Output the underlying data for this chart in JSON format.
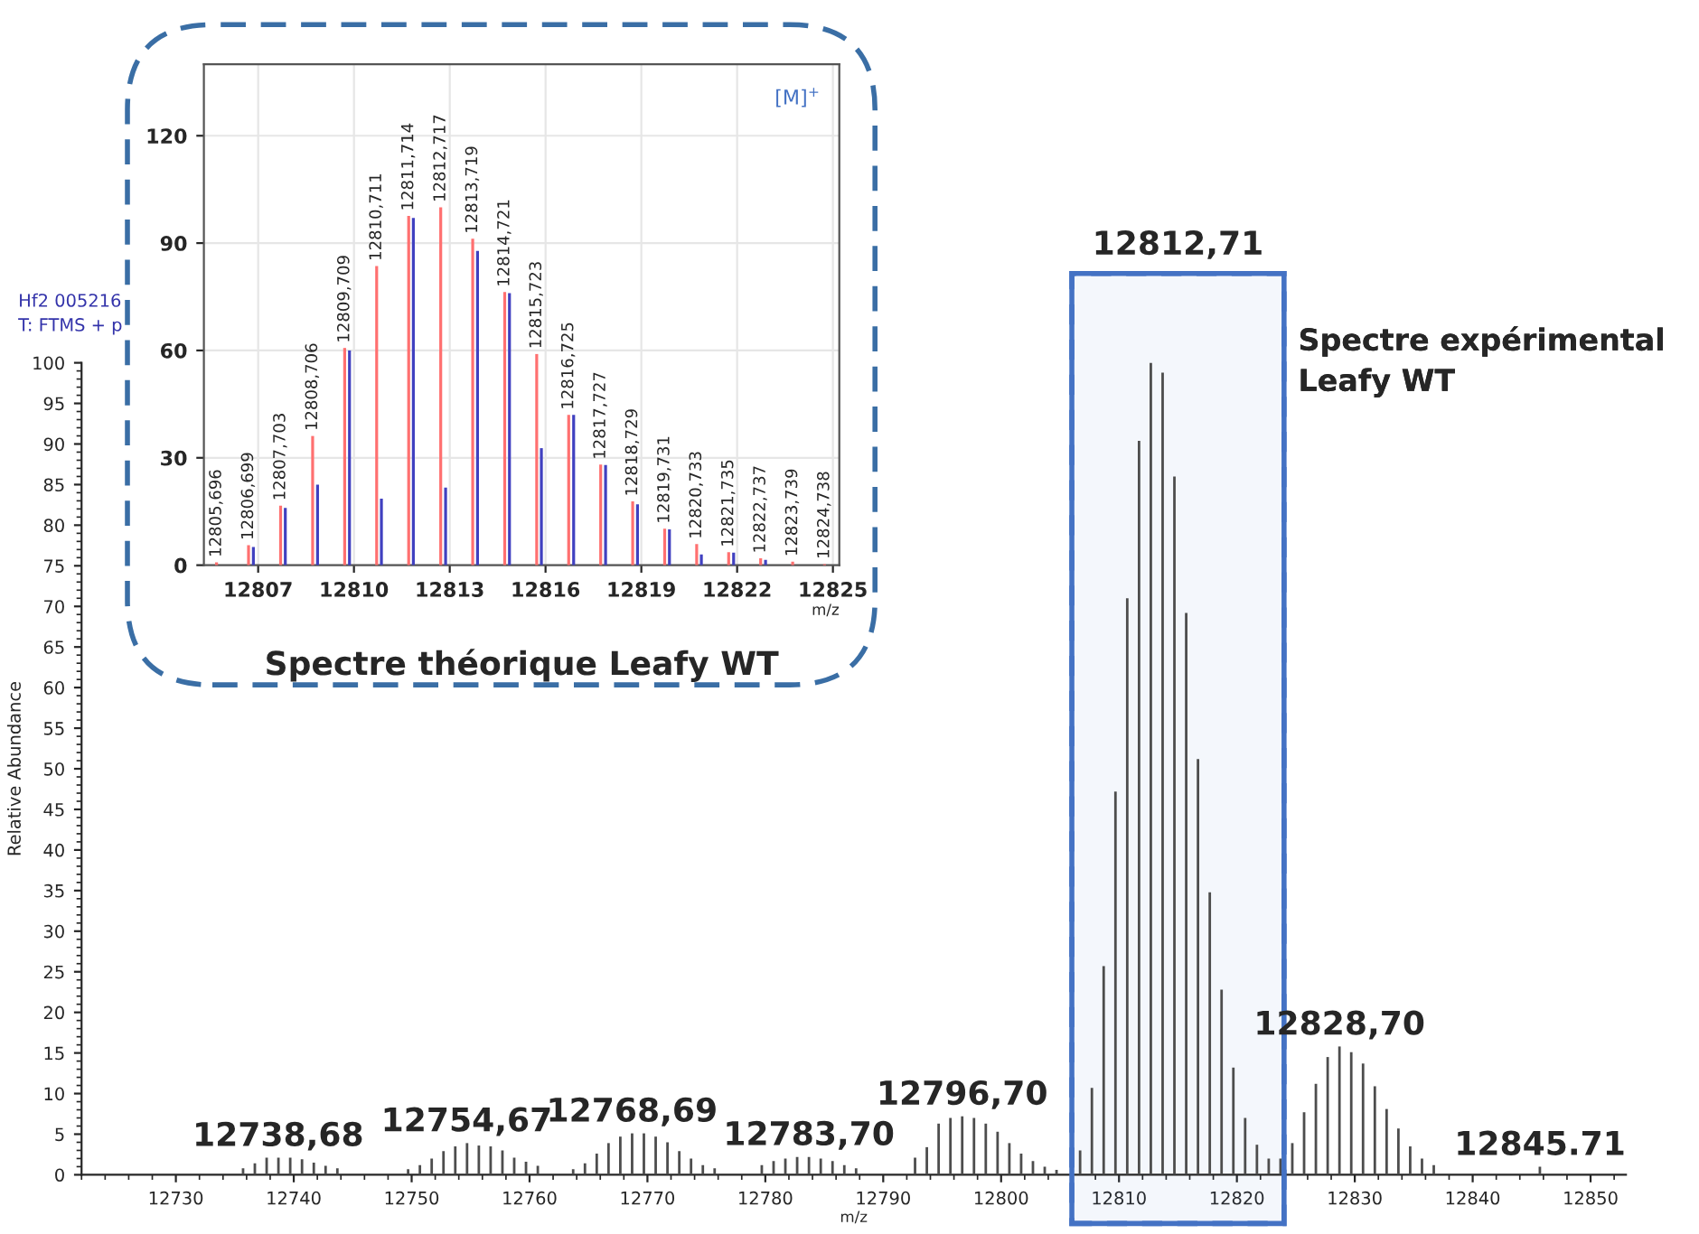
{
  "chart_data": [
    {
      "type": "bar",
      "xlabel": "m/z",
      "ylabel": "Relative Abundance",
      "color": "#4d4d4d",
      "x": [
        12735.7,
        12736.7,
        12737.7,
        12738.7,
        12739.7,
        12740.7,
        12741.7,
        12742.7,
        12743.7,
        12749.7,
        12750.7,
        12751.7,
        12752.7,
        12753.7,
        12754.7,
        12755.7,
        12756.7,
        12757.7,
        12758.7,
        12759.7,
        12760.7,
        12763.7,
        12764.7,
        12765.7,
        12766.7,
        12767.7,
        12768.7,
        12769.7,
        12770.7,
        12771.7,
        12772.7,
        12773.7,
        12774.7,
        12775.7,
        12779.7,
        12780.7,
        12781.7,
        12782.7,
        12783.7,
        12784.7,
        12785.7,
        12786.7,
        12787.7,
        12792.7,
        12793.7,
        12794.7,
        12795.7,
        12796.7,
        12797.7,
        12798.7,
        12799.7,
        12800.7,
        12801.7,
        12802.7,
        12803.7,
        12804.7,
        12806.7,
        12807.7,
        12808.7,
        12809.7,
        12810.7,
        12811.7,
        12812.7,
        12813.7,
        12814.7,
        12815.7,
        12816.7,
        12817.7,
        12818.7,
        12819.7,
        12820.7,
        12821.7,
        12822.7,
        12823.7,
        12824.7,
        12825.7,
        12826.7,
        12827.7,
        12828.7,
        12829.7,
        12830.7,
        12831.7,
        12832.7,
        12833.7,
        12834.7,
        12835.7,
        12836.7,
        12845.7
      ],
      "values": [
        0.8,
        1.4,
        2.1,
        2.1,
        2.1,
        1.9,
        1.5,
        1.1,
        0.8,
        0.7,
        1.2,
        2.0,
        2.9,
        3.5,
        3.9,
        3.6,
        3.5,
        3.0,
        2.1,
        1.6,
        1.1,
        0.7,
        1.4,
        2.6,
        3.9,
        4.7,
        5.1,
        5.1,
        4.7,
        4.0,
        2.9,
        2.0,
        1.2,
        0.8,
        1.2,
        1.7,
        2.0,
        2.2,
        2.2,
        2.0,
        1.7,
        1.2,
        0.8,
        2.1,
        3.4,
        6.3,
        7.0,
        7.2,
        7.0,
        6.3,
        5.3,
        3.9,
        2.6,
        1.7,
        1.0,
        0.6,
        3.0,
        10.7,
        25.7,
        47.2,
        71.0,
        90.4,
        100,
        98.8,
        86.0,
        69.2,
        51.2,
        34.8,
        22.8,
        13.2,
        7.0,
        3.7,
        2.0,
        2.0,
        3.9,
        7.7,
        11.2,
        14.5,
        15.8,
        15.1,
        13.7,
        10.9,
        8.1,
        5.7,
        3.5,
        2.0,
        1.2,
        1.0
      ],
      "xlim": [
        12722,
        12853
      ],
      "ylim": [
        0,
        100
      ],
      "xticks": [
        12730,
        12740,
        12750,
        12760,
        12770,
        12780,
        12790,
        12800,
        12810,
        12820,
        12830,
        12840,
        12850
      ],
      "yticks": [
        0,
        5,
        10,
        15,
        20,
        25,
        30,
        35,
        40,
        45,
        50,
        55,
        60,
        65,
        70,
        75,
        80,
        85,
        90,
        95,
        100
      ],
      "annotations": [
        {
          "text": "12738,68",
          "x": 12738.68,
          "y": 2.1
        },
        {
          "text": "12754,67",
          "x": 12754.67,
          "y": 3.9
        },
        {
          "text": "12768,69",
          "x": 12768.69,
          "y": 5.1
        },
        {
          "text": "12783,70",
          "x": 12783.7,
          "y": 2.2
        },
        {
          "text": "12796,70",
          "x": 12796.7,
          "y": 7.2
        },
        {
          "text": "12828,70",
          "x": 12828.7,
          "y": 15.8
        },
        {
          "text": "12845.71",
          "x": 12845.71,
          "y": 1.0
        },
        "Hf2 005216",
        "T: FTMS + p",
        "12812,71"
      ],
      "bands": [
        {
          "axis": "x",
          "from": 12806,
          "to": 12824,
          "label": "Spectre expérimental\nLeafy WT",
          "color": "#4472c4"
        }
      ]
    },
    {
      "type": "bar",
      "title": "Spectre théorique Leafy WT",
      "xlabel": "m/z",
      "grid": true,
      "series": [
        {
          "color": "#ff7070",
          "x": [
            12805.696,
            12806.699,
            12807.703,
            12808.706,
            12809.709,
            12810.711,
            12811.714,
            12812.717,
            12813.719,
            12814.721,
            12815.723,
            12816.725,
            12817.727,
            12818.729,
            12819.731,
            12820.733,
            12821.735,
            12822.737,
            12823.739,
            12824.738
          ],
          "values": [
            0.8,
            5.6,
            16.6,
            36.1,
            60.7,
            83.6,
            97.6,
            100,
            91.2,
            76.3,
            59.0,
            42.0,
            28.1,
            17.8,
            10.2,
            5.9,
            3.6,
            1.9,
            1.0,
            0.3
          ]
        },
        {
          "color": "#4040c0",
          "x": [
            12806.85,
            12807.85,
            12808.86,
            12809.86,
            12810.86,
            12811.86,
            12812.87,
            12813.87,
            12814.87,
            12815.87,
            12816.88,
            12817.88,
            12818.88,
            12819.88,
            12820.88,
            12821.89,
            12822.89
          ],
          "values": [
            5.1,
            16.0,
            22.5,
            60.0,
            18.6,
            97.0,
            21.7,
            87.8,
            76.0,
            32.7,
            42.0,
            28.0,
            17.0,
            10.0,
            3.0,
            3.5,
            1.5
          ]
        }
      ],
      "xlim": [
        12805.3,
        12825.2
      ],
      "ylim": [
        0,
        140
      ],
      "xticks": [
        12807,
        12810,
        12813,
        12816,
        12819,
        12822,
        12825
      ],
      "yticks": [
        0,
        30,
        60,
        90,
        120
      ],
      "annotations": [
        {
          "text": "12805,696",
          "x": 12805.696,
          "y": 0.8
        },
        {
          "text": "12806,699",
          "x": 12806.699,
          "y": 5.6
        },
        {
          "text": "12807,703",
          "x": 12807.703,
          "y": 16.6
        },
        {
          "text": "12808,706",
          "x": 12808.706,
          "y": 36.1
        },
        {
          "text": "12809,709",
          "x": 12809.709,
          "y": 60.7
        },
        {
          "text": "12810,711",
          "x": 12810.711,
          "y": 83.6
        },
        {
          "text": "12811,714",
          "x": 12811.714,
          "y": 97.6
        },
        {
          "text": "12812,717",
          "x": 12812.717,
          "y": 100
        },
        {
          "text": "12813,719",
          "x": 12813.719,
          "y": 91.2
        },
        {
          "text": "12814,721",
          "x": 12814.721,
          "y": 76.3
        },
        {
          "text": "12815,723",
          "x": 12815.723,
          "y": 59.0
        },
        {
          "text": "12816,725",
          "x": 12816.725,
          "y": 42.0
        },
        {
          "text": "12817,727",
          "x": 12817.727,
          "y": 28.1
        },
        {
          "text": "12818,729",
          "x": 12818.729,
          "y": 17.8
        },
        {
          "text": "12819,731",
          "x": 12819.731,
          "y": 10.2
        },
        {
          "text": "12820,733",
          "x": 12820.733,
          "y": 5.9
        },
        {
          "text": "12821,735",
          "x": 12821.735,
          "y": 3.6
        },
        {
          "text": "12822,737",
          "x": 12822.737,
          "y": 1.9
        },
        {
          "text": "12823,739",
          "x": 12823.739,
          "y": 1.0
        },
        {
          "text": "12824,738",
          "x": 12824.738,
          "y": 0.3
        },
        "[M]$^{+}$"
      ]
    }
  ]
}
